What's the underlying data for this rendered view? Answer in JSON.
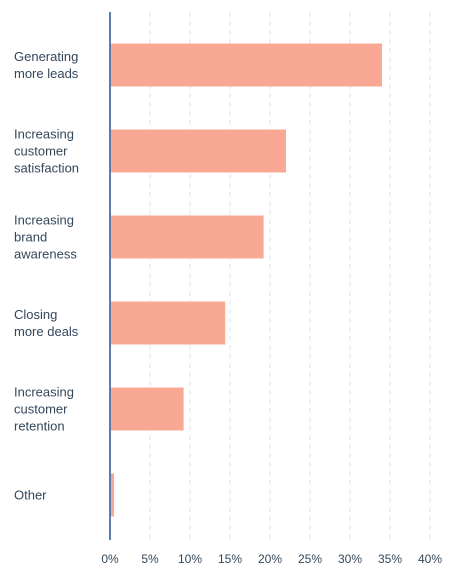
{
  "chart_data": {
    "type": "bar",
    "orientation": "horizontal",
    "title": "",
    "xlabel": "",
    "ylabel": "",
    "categories": [
      [
        "Generating",
        "more leads"
      ],
      [
        "Increasing",
        "customer",
        "satisfaction"
      ],
      [
        "Increasing",
        "brand",
        "awareness"
      ],
      [
        "Closing",
        "more deals"
      ],
      [
        "Increasing",
        "customer",
        "retention"
      ],
      [
        "Other"
      ]
    ],
    "values": [
      34,
      22,
      19.2,
      14.4,
      9.2,
      0.5
    ],
    "xlim": [
      0,
      40
    ],
    "ticks": [
      "0%",
      "5%",
      "10%",
      "15%",
      "20%",
      "25%",
      "30%",
      "35%",
      "40%"
    ],
    "grid": true,
    "legend": "none",
    "bar_color": "#f8a893",
    "axis_color": "#5d7ba6",
    "grid_color": "#dfe3eb",
    "text_color": "#33475b"
  }
}
